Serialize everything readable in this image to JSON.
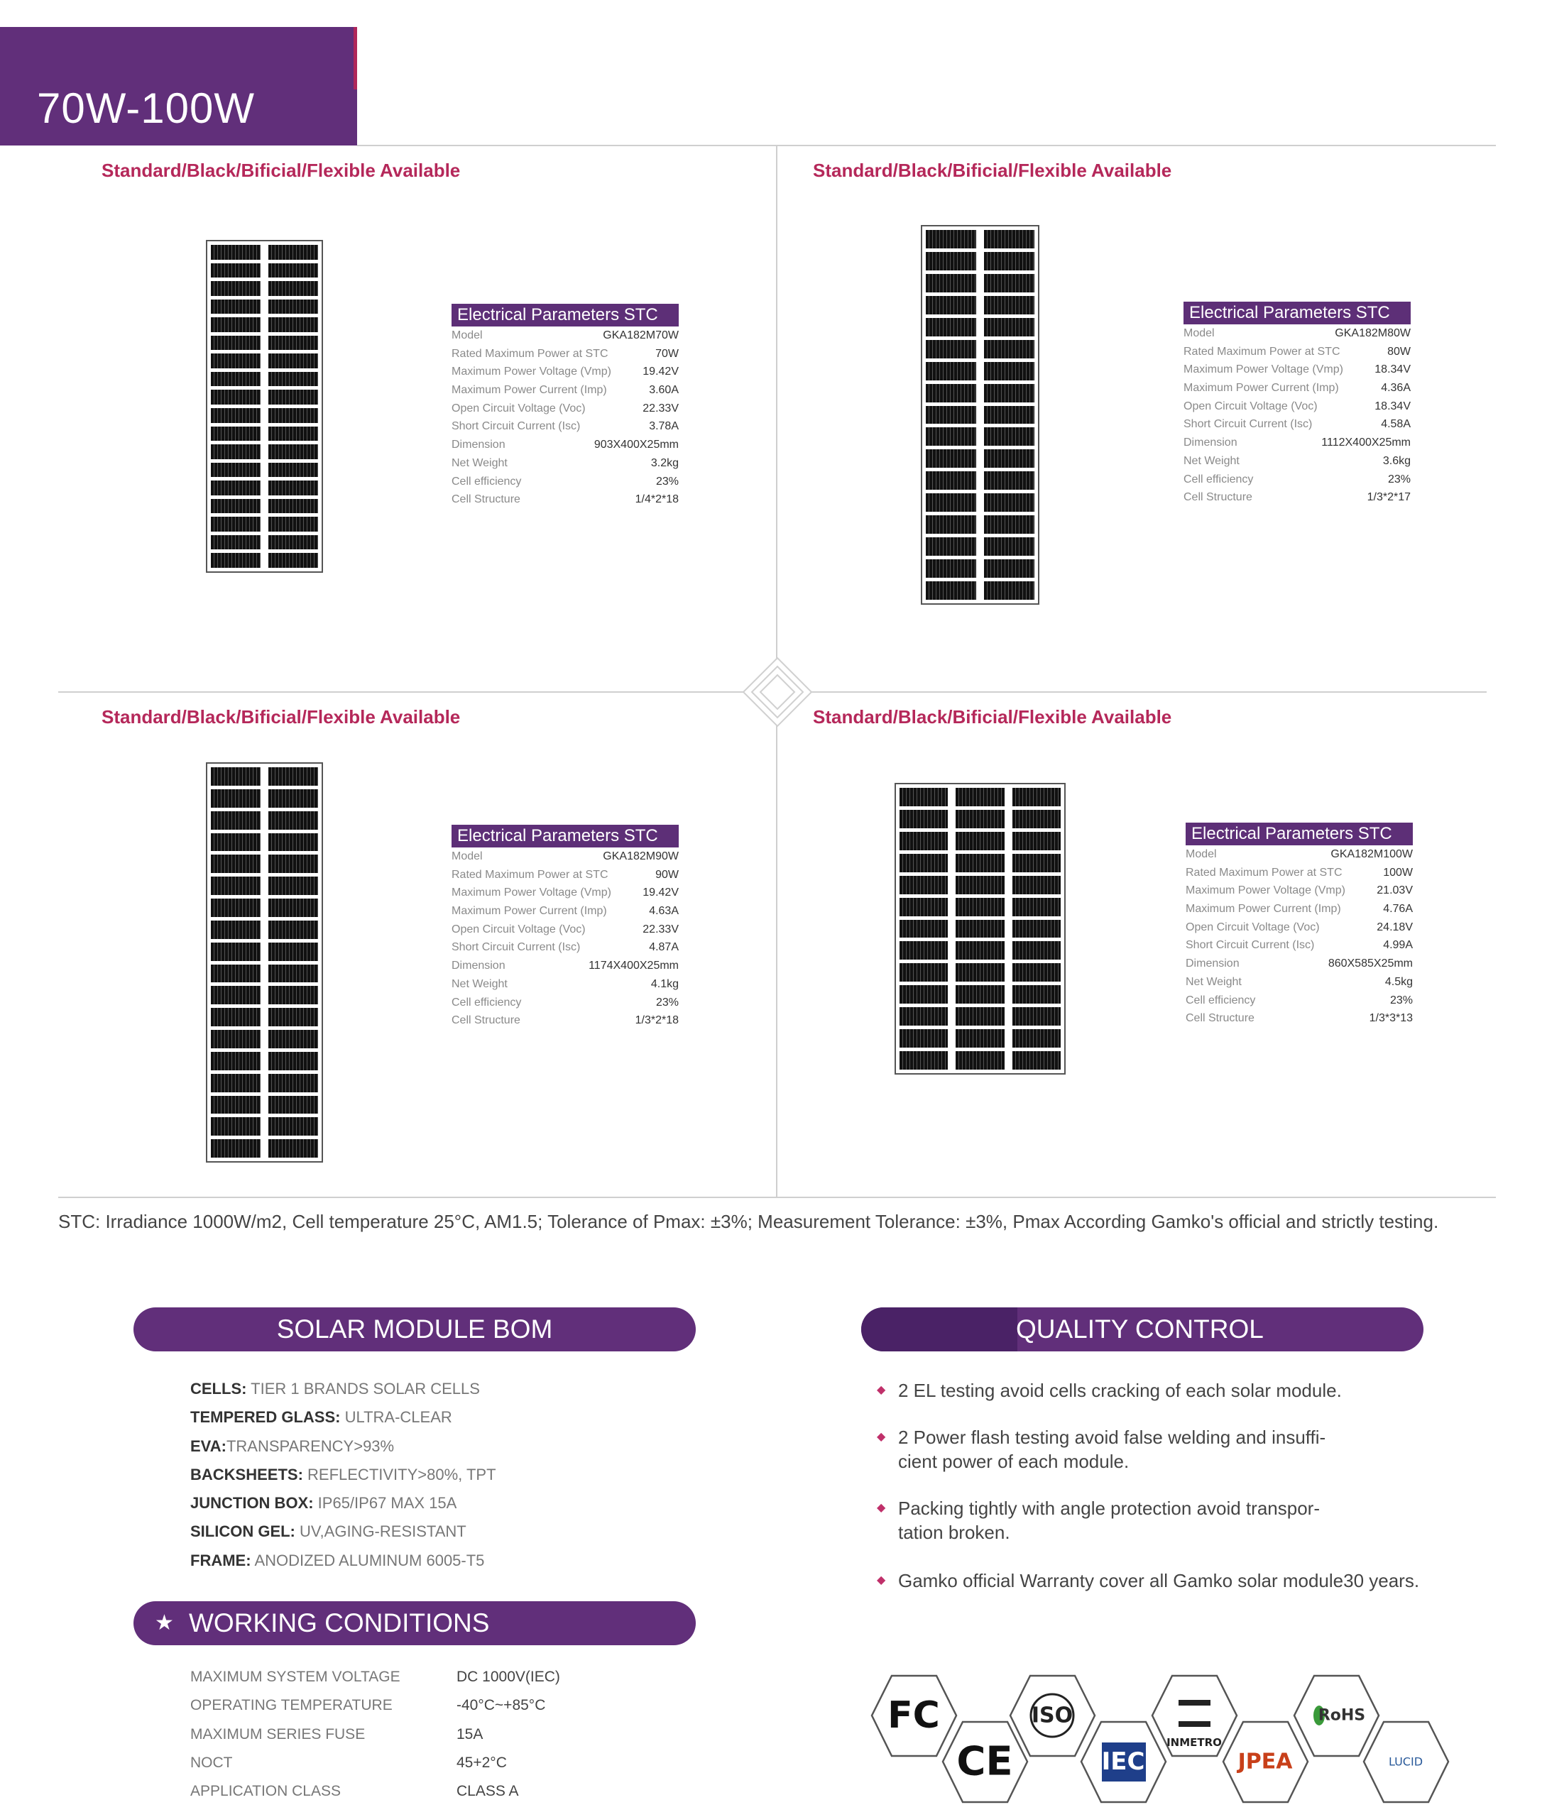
{
  "header": {
    "title": "70W-100W"
  },
  "quadrants": [
    {
      "availability": "Standard/Black/Bificial/Flexible Available",
      "params_title": "Electrical Parameters STC",
      "params": [
        {
          "label": "Model",
          "value": "GKA182M70W"
        },
        {
          "label": "Rated Maximum Power at STC",
          "value": "70W"
        },
        {
          "label": "Maximum Power Voltage (Vmp)",
          "value": "19.42V"
        },
        {
          "label": "Maximum Power Current (Imp)",
          "value": "3.60A"
        },
        {
          "label": "Open Circuit Voltage (Voc)",
          "value": "22.33V"
        },
        {
          "label": "Short Circuit Current (Isc)",
          "value": "3.78A"
        },
        {
          "label": "Dimension",
          "value": "903X400X25mm"
        },
        {
          "label": "Net Weight",
          "value": "3.2kg"
        },
        {
          "label": "Cell efficiency",
          "value": "23%"
        },
        {
          "label": "Cell Structure",
          "value": "1/4*2*18"
        }
      ]
    },
    {
      "availability": "Standard/Black/Bificial/Flexible Available",
      "params_title": "Electrical Parameters STC",
      "params": [
        {
          "label": "Model",
          "value": "GKA182M80W"
        },
        {
          "label": "Rated Maximum Power at STC",
          "value": "80W"
        },
        {
          "label": "Maximum Power Voltage (Vmp)",
          "value": "18.34V"
        },
        {
          "label": "Maximum Power Current (Imp)",
          "value": "4.36A"
        },
        {
          "label": "Open Circuit Voltage (Voc)",
          "value": "18.34V"
        },
        {
          "label": "Short Circuit Current (Isc)",
          "value": "4.58A"
        },
        {
          "label": "Dimension",
          "value": "1112X400X25mm"
        },
        {
          "label": "Net Weight",
          "value": "3.6kg"
        },
        {
          "label": "Cell efficiency",
          "value": "23%"
        },
        {
          "label": "Cell Structure",
          "value": "1/3*2*17"
        }
      ]
    },
    {
      "availability": "Standard/Black/Bificial/Flexible Available",
      "params_title": "Electrical Parameters STC",
      "params": [
        {
          "label": "Model",
          "value": "GKA182M90W"
        },
        {
          "label": "Rated Maximum Power at STC",
          "value": "90W"
        },
        {
          "label": "Maximum Power Voltage (Vmp)",
          "value": "19.42V"
        },
        {
          "label": "Maximum Power Current (Imp)",
          "value": "4.63A"
        },
        {
          "label": "Open Circuit Voltage (Voc)",
          "value": "22.33V"
        },
        {
          "label": "Short Circuit Current (Isc)",
          "value": "4.87A"
        },
        {
          "label": "Dimension",
          "value": "1174X400X25mm"
        },
        {
          "label": "Net Weight",
          "value": "4.1kg"
        },
        {
          "label": "Cell efficiency",
          "value": "23%"
        },
        {
          "label": "Cell Structure",
          "value": "1/3*2*18"
        }
      ]
    },
    {
      "availability": "Standard/Black/Bificial/Flexible Available",
      "params_title": "Electrical Parameters STC",
      "params": [
        {
          "label": "Model",
          "value": "GKA182M100W"
        },
        {
          "label": "Rated Maximum Power at STC",
          "value": "100W"
        },
        {
          "label": "Maximum Power Voltage (Vmp)",
          "value": "21.03V"
        },
        {
          "label": "Maximum Power Current (Imp)",
          "value": "4.76A"
        },
        {
          "label": "Open Circuit Voltage (Voc)",
          "value": "24.18V"
        },
        {
          "label": "Short Circuit Current (Isc)",
          "value": "4.99A"
        },
        {
          "label": "Dimension",
          "value": "860X585X25mm"
        },
        {
          "label": "Net Weight",
          "value": "4.5kg"
        },
        {
          "label": "Cell efficiency",
          "value": "23%"
        },
        {
          "label": "Cell Structure",
          "value": "1/3*3*13"
        }
      ]
    }
  ],
  "stc_note": "STC: Irradiance 1000W/m2, Cell temperature 25°C, AM1.5; Tolerance of Pmax: ±3%; Measurement Tolerance: ±3%, Pmax According Gamko's official and strictly testing.",
  "bom": {
    "title": "SOLAR MODULE BOM",
    "items": [
      {
        "key": "CELLS:",
        "value": " TIER 1 BRANDS SOLAR CELLS"
      },
      {
        "key": "TEMPERED GLASS:",
        "value": " ULTRA-CLEAR"
      },
      {
        "key": "EVA:",
        "value": "TRANSPARENCY>93%"
      },
      {
        "key": "BACKSHEETS:",
        "value": " REFLECTIVITY>80%, TPT"
      },
      {
        "key": "JUNCTION BOX:",
        "value": " IP65/IP67 MAX 15A"
      },
      {
        "key": "SILICON GEL:",
        "value": " UV,AGING-RESISTANT"
      },
      {
        "key": "FRAME:",
        "value": " ANODIZED ALUMINUM 6005-T5"
      }
    ]
  },
  "quality": {
    "title": "QUALITY CONTROL",
    "items": [
      "2 EL testing avoid cells cracking of each solar module.",
      "2 Power flash testing avoid false welding and insuffi-cient power of each module.",
      "Packing tightly with angle protection avoid transpor-tation broken.",
      "Gamko official Warranty cover all Gamko solar module30 years."
    ]
  },
  "working": {
    "title": "WORKING CONDITIONS",
    "rows": [
      {
        "label": "MAXIMUM SYSTEM VOLTAGE",
        "value": "DC 1000V(IEC)"
      },
      {
        "label": "OPERATING TEMPERATURE",
        "value": "-40°C~+85°C"
      },
      {
        "label": "MAXIMUM SERIES FUSE",
        "value": "15A"
      },
      {
        "label": "NOCT",
        "value": "45+2°C"
      },
      {
        "label": "APPLICATION CLASS",
        "value": "CLASS A"
      }
    ]
  },
  "certifications": [
    {
      "name": "fc-logo",
      "text": "FC"
    },
    {
      "name": "ce-logo",
      "text": "CE"
    },
    {
      "name": "iso-logo",
      "text": "ISO"
    },
    {
      "name": "iec-logo",
      "text": "IEC"
    },
    {
      "name": "inmetro-logo",
      "text": "INMETRO"
    },
    {
      "name": "jpea-logo",
      "text": "JPEA"
    },
    {
      "name": "rohs-logo",
      "text": "RoHS"
    },
    {
      "name": "lucid-logo",
      "text": "LUCID"
    }
  ],
  "colors": {
    "brand_purple": "#612f7a",
    "accent_red": "#b5285a"
  }
}
